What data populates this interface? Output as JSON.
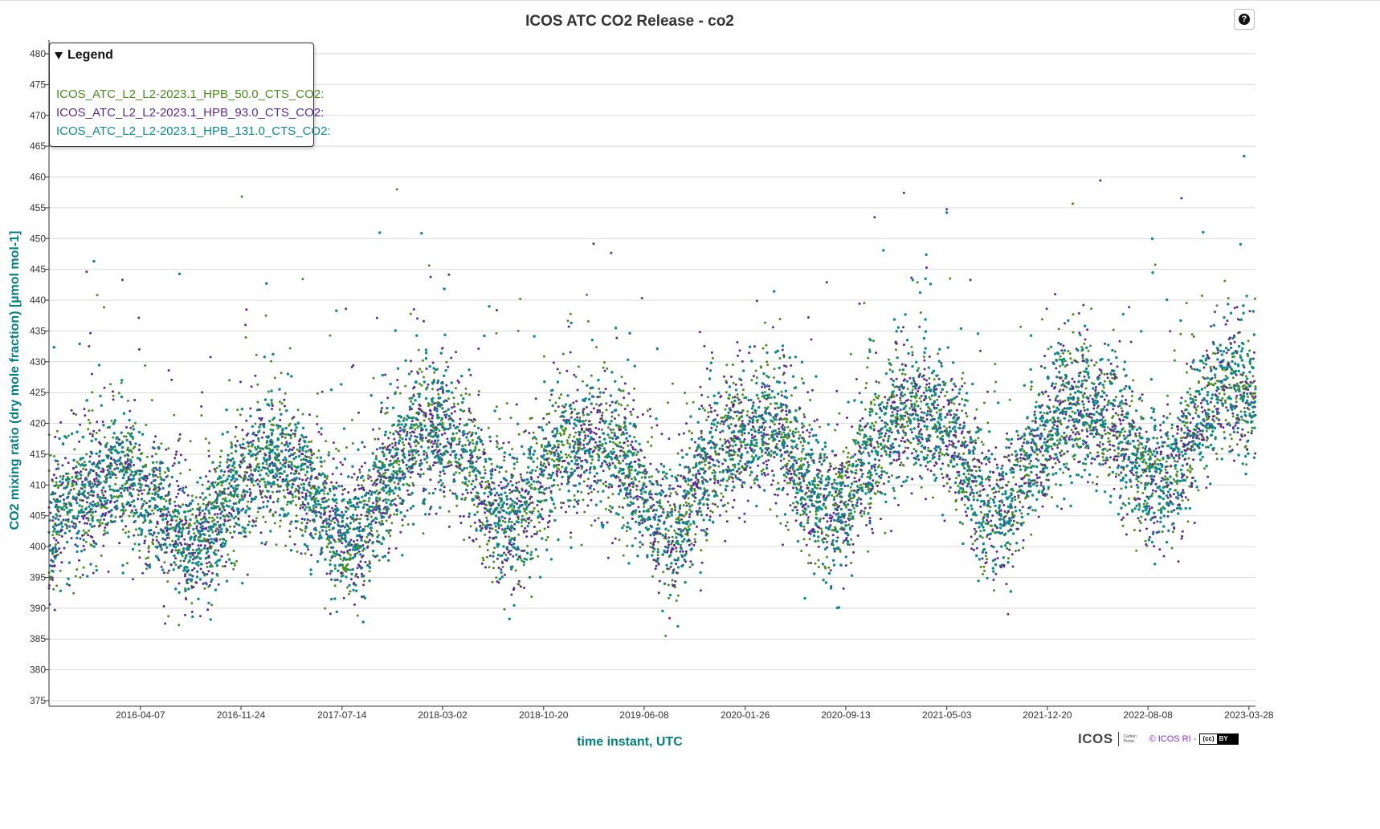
{
  "chart_title": "ICOS ATC CO2 Release - co2",
  "help_icon": "question-circle-icon",
  "legend": {
    "header": "Legend",
    "entries": [
      {
        "label": "ICOS_ATC_L2_L2-2023.1_HPB_50.0_CTS_CO2:",
        "color": "#4a8c1c"
      },
      {
        "label": "ICOS_ATC_L2_L2-2023.1_HPB_93.0_CTS_CO2:",
        "color": "#5b2a96"
      },
      {
        "label": "ICOS_ATC_L2_L2-2023.1_HPB_131.0_CTS_CO2:",
        "color": "#0a8a8a"
      }
    ]
  },
  "footer": {
    "logo_text": "ICOS",
    "logo_subtext": "Carbon Portal",
    "copyright": "© ICOS RI -",
    "license_cc": "(cc)",
    "license_by": "BY"
  },
  "chart_data": {
    "type": "scatter",
    "title": "ICOS ATC CO2 Release - co2",
    "xlabel": "time instant, UTC",
    "ylabel": "CO2 mixing ratio (dry mole fraction) [µmol mol-1]",
    "ylim": [
      375,
      480
    ],
    "yticks": [
      375,
      380,
      385,
      390,
      395,
      400,
      405,
      410,
      415,
      420,
      425,
      430,
      435,
      440,
      445,
      450,
      455,
      460,
      465,
      470,
      475,
      480
    ],
    "xlim": [
      "2015-09-10",
      "2023-04-12"
    ],
    "xticks": [
      "2016-04-07",
      "2016-11-24",
      "2017-07-14",
      "2018-03-02",
      "2018-10-20",
      "2019-06-08",
      "2020-01-26",
      "2020-09-13",
      "2021-05-03",
      "2021-12-20",
      "2022-08-08",
      "2023-03-28"
    ],
    "grid": "horizontal",
    "legend_placement": "top-left",
    "colors": [
      "#4a8c1c",
      "#5b2a96",
      "#0a8a8a"
    ],
    "series_note_points": "approximate monthly-scale envelope read from the dense hourly scatter",
    "series": [
      {
        "name": "ICOS_ATC_L2_L2-2023.1_HPB_50.0_CTS_CO2:",
        "x": [
          "2015-09-15",
          "2015-10-15",
          "2015-11-15",
          "2015-12-15",
          "2016-01-15",
          "2016-02-15",
          "2016-03-15",
          "2016-04-15",
          "2016-05-15",
          "2016-06-15",
          "2016-07-15",
          "2016-08-15",
          "2016-09-15",
          "2016-10-15",
          "2016-11-15",
          "2016-12-15",
          "2017-01-15",
          "2017-02-15",
          "2017-03-15",
          "2017-04-15",
          "2017-05-15",
          "2017-06-15",
          "2017-07-15",
          "2017-08-15",
          "2017-09-15",
          "2017-10-15",
          "2017-11-15",
          "2017-12-15",
          "2018-01-15",
          "2018-02-15",
          "2018-03-15",
          "2018-04-15",
          "2018-05-15",
          "2018-06-15",
          "2018-07-15",
          "2018-08-15",
          "2018-09-15",
          "2018-10-15",
          "2018-11-15",
          "2018-12-15",
          "2019-01-15",
          "2019-02-15",
          "2019-03-15",
          "2019-04-15",
          "2019-05-15",
          "2019-06-15",
          "2019-07-15",
          "2019-08-15",
          "2019-09-15",
          "2019-10-15",
          "2019-11-15",
          "2019-12-15",
          "2020-01-15",
          "2020-02-15",
          "2020-03-15",
          "2020-04-15",
          "2020-05-15",
          "2020-06-15",
          "2020-07-15",
          "2020-08-15",
          "2020-09-15",
          "2020-10-15",
          "2020-11-15",
          "2020-12-15",
          "2021-01-15",
          "2021-02-15",
          "2021-03-15",
          "2021-04-15",
          "2021-05-15",
          "2021-06-15",
          "2021-07-15",
          "2021-08-15",
          "2021-09-15",
          "2021-10-15",
          "2021-11-15",
          "2021-12-15",
          "2022-01-15",
          "2022-02-15",
          "2022-03-15",
          "2022-04-15",
          "2022-05-15",
          "2022-06-15",
          "2022-07-15",
          "2022-08-15",
          "2022-09-15",
          "2022-10-15",
          "2022-11-15",
          "2022-12-15",
          "2023-01-15",
          "2023-02-15",
          "2023-03-15",
          "2023-04-10"
        ],
        "y": [
          400,
          409,
          407,
          409,
          410,
          412,
          411,
          408,
          406,
          403,
          400,
          400,
          403,
          406,
          409,
          412,
          414,
          414,
          413,
          411,
          408,
          404,
          401,
          401,
          405,
          409,
          413,
          416,
          418,
          419,
          418,
          416,
          412,
          408,
          405,
          404,
          406,
          411,
          414,
          416,
          417,
          417,
          416,
          414,
          411,
          407,
          403,
          402,
          406,
          411,
          415,
          417,
          418,
          418,
          419,
          418,
          414,
          410,
          407,
          405,
          407,
          412,
          416,
          418,
          421,
          422,
          421,
          420,
          418,
          413,
          408,
          404,
          405,
          410,
          415,
          418,
          422,
          423,
          422,
          421,
          420,
          417,
          413,
          411,
          410,
          413,
          418,
          422,
          425,
          426,
          425,
          424
        ]
      },
      {
        "name": "ICOS_ATC_L2_L2-2023.1_HPB_93.0_CTS_CO2:",
        "x": [
          "2015-09-15",
          "2016-03-15",
          "2016-09-15",
          "2017-03-15",
          "2017-09-15",
          "2018-03-15",
          "2018-09-15",
          "2019-03-15",
          "2019-09-15",
          "2020-03-15",
          "2020-09-15",
          "2021-03-15",
          "2021-09-15",
          "2022-03-15",
          "2022-09-15",
          "2023-03-15"
        ],
        "y": [
          400,
          411,
          403,
          413,
          405,
          418,
          406,
          416,
          406,
          419,
          407,
          421,
          405,
          420,
          410,
          425
        ]
      },
      {
        "name": "ICOS_ATC_L2_L2-2023.1_HPB_131.0_CTS_CO2:",
        "x": [
          "2015-09-15",
          "2016-03-15",
          "2016-09-15",
          "2017-03-15",
          "2017-09-15",
          "2018-03-15",
          "2018-09-15",
          "2019-03-15",
          "2019-09-15",
          "2020-03-15",
          "2020-09-15",
          "2021-03-15",
          "2021-09-15",
          "2022-03-15",
          "2022-09-15",
          "2023-03-15"
        ],
        "y": [
          400,
          411,
          403,
          413,
          405,
          418,
          406,
          416,
          406,
          419,
          407,
          421,
          405,
          420,
          410,
          425
        ]
      }
    ]
  }
}
